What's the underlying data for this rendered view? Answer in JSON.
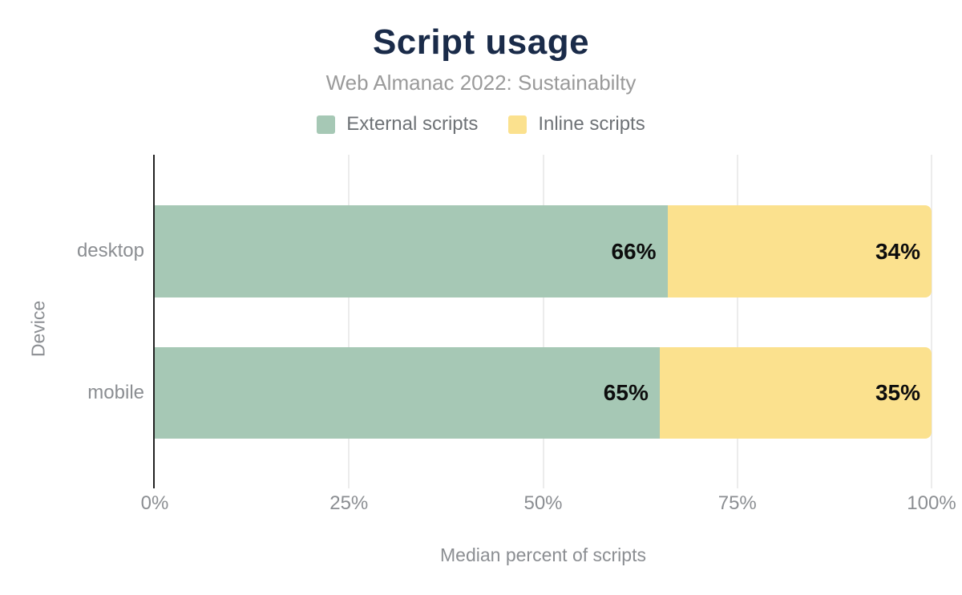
{
  "title": "Script usage",
  "subtitle": "Web Almanac 2022: Sustainabilty",
  "colors": {
    "external_scripts": "#a6c8b5",
    "inline_scripts": "#fbe18e",
    "title_navy": "#1a2b49",
    "axis_text_gray": "#8b8e92",
    "gridline_gray": "#ececec",
    "bar_label_black": "#0d0d0d"
  },
  "chart_data": {
    "type": "bar",
    "orientation": "horizontal",
    "stacked": true,
    "title": "Script usage",
    "subtitle": "Web Almanac 2022: Sustainabilty",
    "categories": [
      "desktop",
      "mobile"
    ],
    "series": [
      {
        "name": "External scripts",
        "color": "#a6c8b5",
        "values": [
          66,
          65
        ]
      },
      {
        "name": "Inline scripts",
        "color": "#fbe18e",
        "values": [
          34,
          35
        ]
      }
    ],
    "value_labels": [
      [
        "66%",
        "34%"
      ],
      [
        "65%",
        "35%"
      ]
    ],
    "xlabel": "Median percent of scripts",
    "ylabel": "Device",
    "xlim": [
      0,
      100
    ],
    "x_ticks": [
      "0%",
      "25%",
      "50%",
      "75%",
      "100%"
    ],
    "grid": "vertical",
    "legend_position": "top"
  }
}
